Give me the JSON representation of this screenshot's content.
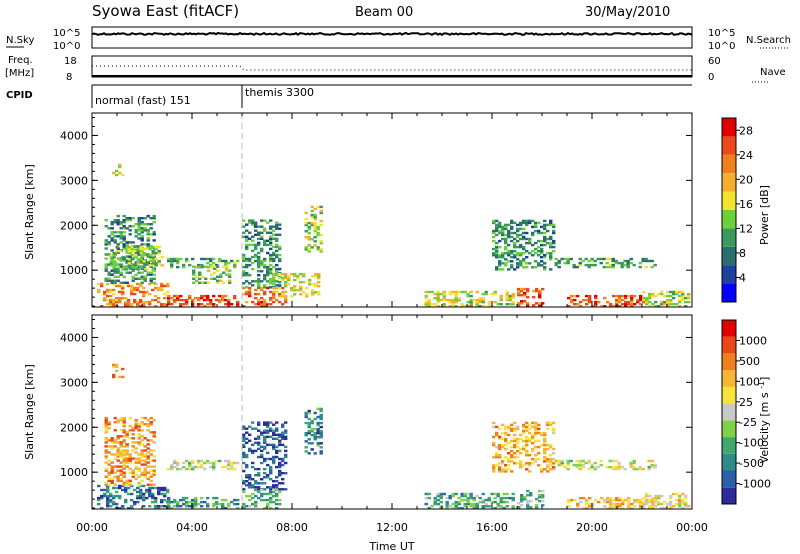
{
  "header": {
    "station": "Syowa East (fitACF)",
    "beam": "Beam 00",
    "date": "30/May/2010"
  },
  "status_panels": {
    "nsky": {
      "label": "N.Sky",
      "tick_top": "10^5",
      "tick_bottom": "10^0",
      "right_label": "N.Search",
      "right_tick_top": "10^5",
      "right_tick_bottom": "10^0"
    },
    "freq": {
      "label_line1": "Freq.",
      "label_line2": "[MHz]",
      "tick_top": "18",
      "tick_bottom": "8",
      "right_label": "Nave",
      "right_tick_top": "60",
      "right_tick_bottom": "0"
    },
    "cpid": {
      "label": "CPID",
      "modes": [
        {
          "name": "normal (fast) 151",
          "start_hour": 0
        },
        {
          "name": "themis 3300",
          "start_hour": 6
        }
      ]
    }
  },
  "chart_data": [
    {
      "type": "heatmap",
      "title": "",
      "xlabel": "",
      "ylabel": "Slant Range [km]",
      "xlim": [
        0,
        24
      ],
      "ylim": [
        180,
        4500
      ],
      "y_ticks": [
        "1000",
        "2000",
        "3000",
        "4000"
      ],
      "colorbar": {
        "label": "Power [dB]",
        "ticks": [
          "4",
          "8",
          "12",
          "16",
          "20",
          "24",
          "28"
        ],
        "range": [
          0,
          30
        ],
        "colors": [
          "#0000ff",
          "#1d3f9e",
          "#2a6e6e",
          "#3a9a5b",
          "#6dcf3c",
          "#f2e32f",
          "#f4b02c",
          "#f07f1d",
          "#e94a1a",
          "#e00000"
        ]
      },
      "regions": [
        {
          "t0": 0.2,
          "t1": 3.0,
          "r0": 180,
          "r1": 700,
          "level": 0.75
        },
        {
          "t0": 3.0,
          "t1": 5.8,
          "r0": 180,
          "r1": 450,
          "level": 0.9
        },
        {
          "t0": 0.5,
          "t1": 2.5,
          "r0": 700,
          "r1": 2200,
          "level": 0.3
        },
        {
          "t0": 0.7,
          "t1": 2.8,
          "r0": 1000,
          "r1": 1500,
          "level": 0.45
        },
        {
          "t0": 3.0,
          "t1": 5.8,
          "r0": 1050,
          "r1": 1250,
          "level": 0.35
        },
        {
          "t0": 4.0,
          "t1": 5.5,
          "r0": 700,
          "r1": 1100,
          "level": 0.45
        },
        {
          "t0": 6.0,
          "t1": 7.8,
          "r0": 180,
          "r1": 600,
          "level": 0.8
        },
        {
          "t0": 6.0,
          "t1": 7.5,
          "r0": 600,
          "r1": 2100,
          "level": 0.3
        },
        {
          "t0": 8.5,
          "t1": 9.2,
          "r0": 1400,
          "r1": 2400,
          "level": 0.5
        },
        {
          "t0": 7.2,
          "t1": 9.0,
          "r0": 400,
          "r1": 900,
          "level": 0.55
        },
        {
          "t0": 13.3,
          "t1": 16.8,
          "r0": 180,
          "r1": 500,
          "level": 0.55
        },
        {
          "t0": 16.0,
          "t1": 18.5,
          "r0": 1000,
          "r1": 2100,
          "level": 0.3
        },
        {
          "t0": 17.0,
          "t1": 18.0,
          "r0": 200,
          "r1": 600,
          "level": 0.85
        },
        {
          "t0": 18.5,
          "t1": 22.5,
          "r0": 1050,
          "r1": 1250,
          "level": 0.35
        },
        {
          "t0": 19.0,
          "t1": 22.3,
          "r0": 180,
          "r1": 450,
          "level": 0.85
        },
        {
          "t0": 22.0,
          "t1": 23.9,
          "r0": 180,
          "r1": 500,
          "level": 0.5
        },
        {
          "t0": 0.8,
          "t1": 1.2,
          "r0": 3100,
          "r1": 3400,
          "level": 0.55
        }
      ]
    },
    {
      "type": "heatmap",
      "title": "",
      "xlabel": "Time UT",
      "ylabel": "Slant Range [km]",
      "xlim": [
        0,
        24
      ],
      "ylim": [
        180,
        4500
      ],
      "y_ticks": [
        "1000",
        "2000",
        "3000",
        "4000"
      ],
      "x_ticks": [
        "00:00",
        "04:00",
        "08:00",
        "12:00",
        "16:00",
        "20:00",
        "00:00"
      ],
      "colorbar": {
        "label": "Velocity [m s^-1]",
        "ticks": [
          "1000",
          "500",
          "100",
          "25",
          "-25",
          "-100",
          "-500",
          "-1000"
        ],
        "range": [
          -1000,
          1000
        ],
        "colors": [
          "#2c2c9a",
          "#2b5fa8",
          "#2f8a8a",
          "#3fa86a",
          "#7fd04a",
          "#c8c8c8",
          "#f6e43a",
          "#f6b534",
          "#f0801e",
          "#e84818",
          "#e00000"
        ]
      },
      "regions": [
        {
          "t0": 0.2,
          "t1": 3.0,
          "r0": 180,
          "r1": 700,
          "level": 0.15
        },
        {
          "t0": 3.0,
          "t1": 5.8,
          "r0": 180,
          "r1": 450,
          "level": 0.25
        },
        {
          "t0": 0.5,
          "t1": 2.5,
          "r0": 700,
          "r1": 2200,
          "level": 0.75
        },
        {
          "t0": 3.0,
          "t1": 5.8,
          "r0": 1050,
          "r1": 1250,
          "level": 0.5
        },
        {
          "t0": 6.0,
          "t1": 7.8,
          "r0": 600,
          "r1": 2100,
          "level": 0.08
        },
        {
          "t0": 6.0,
          "t1": 7.5,
          "r0": 180,
          "r1": 600,
          "level": 0.3
        },
        {
          "t0": 8.5,
          "t1": 9.2,
          "r0": 1400,
          "r1": 2400,
          "level": 0.2
        },
        {
          "t0": 13.3,
          "t1": 16.8,
          "r0": 180,
          "r1": 500,
          "level": 0.3
        },
        {
          "t0": 16.0,
          "t1": 18.5,
          "r0": 1000,
          "r1": 2100,
          "level": 0.7
        },
        {
          "t0": 17.0,
          "t1": 18.0,
          "r0": 200,
          "r1": 600,
          "level": 0.35
        },
        {
          "t0": 18.5,
          "t1": 22.5,
          "r0": 1050,
          "r1": 1250,
          "level": 0.5
        },
        {
          "t0": 19.0,
          "t1": 22.3,
          "r0": 180,
          "r1": 450,
          "level": 0.65
        },
        {
          "t0": 22.0,
          "t1": 23.9,
          "r0": 180,
          "r1": 500,
          "level": 0.6
        },
        {
          "t0": 0.8,
          "t1": 1.2,
          "r0": 3100,
          "r1": 3400,
          "level": 0.8
        }
      ]
    }
  ]
}
